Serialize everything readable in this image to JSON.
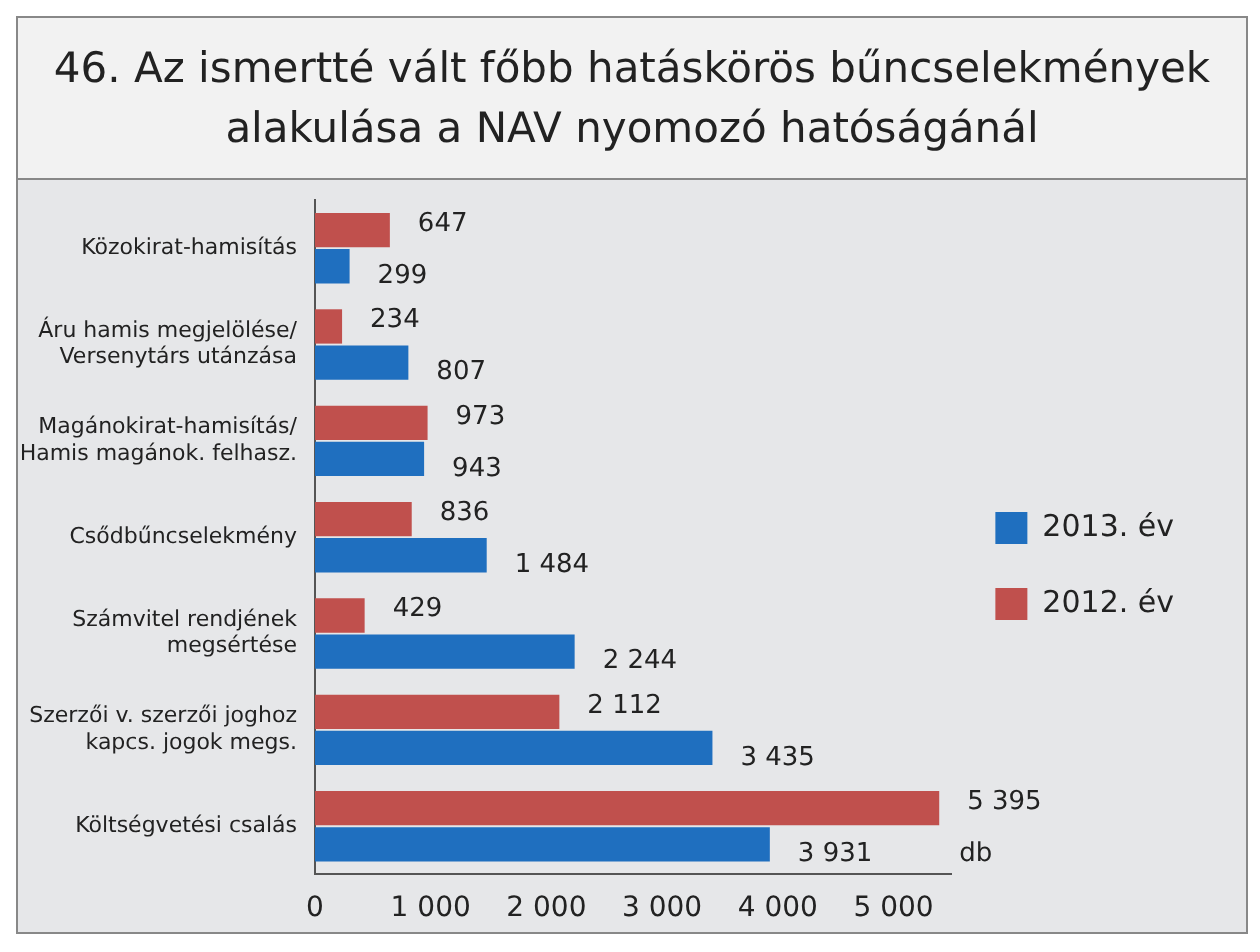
{
  "chart_data": {
    "type": "bar",
    "orientation": "horizontal",
    "title": "46. Az ismertté vált főbb hatáskörös bűncselekmények\nalakulása a NAV nyomozó hatóságánál",
    "xlabel": "db",
    "categories": [
      "Közokirat-hamisítás",
      "Áru hamis megjelölése/\nVersenytárs utánzása",
      "Magánokirat-hamisítás/\nHamis magánok. felhasz.",
      "Csődbűncselekmény",
      "Számvitel rendjének\nmegsértése",
      "Szerzői v. szerzői joghoz\nkapcs. jogok megs.",
      "Költségvetési csalás"
    ],
    "series": [
      {
        "name": "2012. év",
        "color": "#c0504d",
        "values": [
          647,
          234,
          973,
          836,
          429,
          2112,
          5395
        ],
        "value_labels": [
          "647",
          "234",
          "973",
          "836",
          "429",
          "2 112",
          "5 395"
        ]
      },
      {
        "name": "2013. év",
        "color": "#1f6fbf",
        "values": [
          299,
          807,
          943,
          1484,
          2244,
          3435,
          3931
        ],
        "value_labels": [
          "299",
          "807",
          "943",
          "1 484",
          "2 244",
          "3 435",
          "3 931"
        ]
      }
    ],
    "xlim": [
      0,
      5500
    ],
    "xticks": [
      0,
      {
        "value": 1000,
        "label": "1 000"
      },
      {
        "value": 2000,
        "label": "2 000"
      },
      {
        "value": 3000,
        "label": "3 000"
      },
      {
        "value": 4000,
        "label": "4 000"
      },
      {
        "value": 5000,
        "label": "5 000"
      }
    ],
    "grid": false,
    "legend": "right"
  }
}
